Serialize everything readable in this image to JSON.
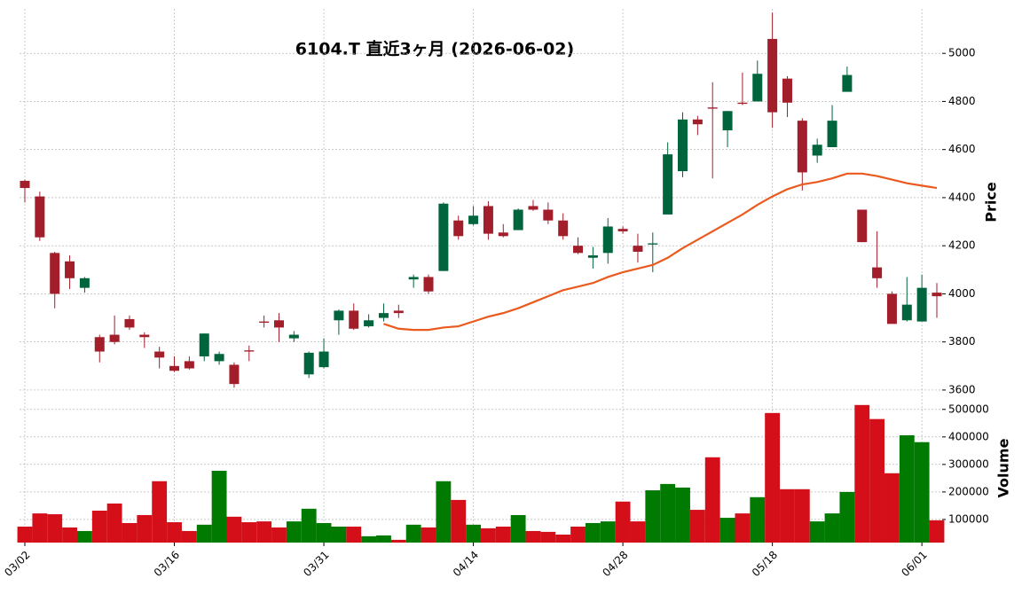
{
  "chart_data": {
    "type": "candlestick",
    "title": "6104.T  直近3ヶ月  (2026-06-02)",
    "categories": [
      "03/02",
      null,
      null,
      null,
      null,
      null,
      null,
      null,
      null,
      null,
      "03/16",
      null,
      null,
      null,
      null,
      null,
      null,
      null,
      null,
      null,
      "03/31",
      null,
      null,
      null,
      null,
      null,
      null,
      null,
      null,
      null,
      "04/14",
      null,
      null,
      null,
      null,
      null,
      null,
      null,
      null,
      null,
      "04/28",
      null,
      null,
      null,
      null,
      null,
      null,
      null,
      null,
      null,
      "05/18",
      null,
      null,
      null,
      null,
      null,
      null,
      null,
      null,
      null,
      "06/01",
      null
    ],
    "open": [
      4470,
      4405,
      4170,
      4135,
      4025,
      3820,
      3830,
      3895,
      3830,
      3760,
      3700,
      3720,
      3740,
      3720,
      3705,
      3765,
      3885,
      3890,
      3815,
      3665,
      3695,
      3890,
      3930,
      3865,
      3900,
      3930,
      4060,
      4070,
      4095,
      4305,
      4290,
      4365,
      4255,
      4265,
      4365,
      4350,
      4305,
      4200,
      4150,
      4170,
      4270,
      4200,
      4205,
      4330,
      4510,
      4725,
      4775,
      4680,
      4795,
      4800,
      5060,
      4895,
      4720,
      4575,
      4610,
      4840,
      4350,
      4110,
      4000,
      3890,
      3885,
      4005
    ],
    "high": [
      4475,
      4425,
      4175,
      4160,
      4070,
      3830,
      3910,
      3910,
      3840,
      3780,
      3740,
      3740,
      3835,
      3760,
      3715,
      3785,
      3910,
      3920,
      3845,
      3760,
      3815,
      3935,
      3960,
      3915,
      3960,
      3955,
      4080,
      4080,
      4380,
      4325,
      4365,
      4385,
      4290,
      4355,
      4390,
      4380,
      4335,
      4235,
      4195,
      4315,
      4280,
      4250,
      4255,
      4630,
      4755,
      4740,
      4880,
      4760,
      4920,
      4970,
      5170,
      4905,
      4730,
      4645,
      4785,
      4945,
      4350,
      4260,
      4010,
      4070,
      4080,
      4045
    ],
    "low": [
      4380,
      4220,
      3940,
      4020,
      4005,
      3715,
      3790,
      3850,
      3775,
      3690,
      3675,
      3685,
      3720,
      3705,
      3610,
      3720,
      3860,
      3800,
      3800,
      3650,
      3690,
      3830,
      3850,
      3860,
      3885,
      3900,
      4025,
      4000,
      4095,
      4225,
      4285,
      4225,
      4235,
      4265,
      4345,
      4290,
      4225,
      4165,
      4105,
      4125,
      4250,
      4130,
      4090,
      4330,
      4485,
      4660,
      4480,
      4610,
      4785,
      4800,
      4690,
      4735,
      4430,
      4545,
      4610,
      4840,
      4215,
      4025,
      3875,
      3885,
      3885,
      3900
    ],
    "close": [
      4440,
      4235,
      4000,
      4065,
      4065,
      3760,
      3800,
      3860,
      3820,
      3735,
      3680,
      3690,
      3835,
      3750,
      3625,
      3760,
      3880,
      3860,
      3830,
      3755,
      3760,
      3930,
      3855,
      3890,
      3920,
      3920,
      4070,
      4010,
      4375,
      4240,
      4325,
      4250,
      4240,
      4350,
      4350,
      4305,
      4240,
      4170,
      4160,
      4280,
      4260,
      4175,
      4210,
      4580,
      4725,
      4705,
      4770,
      4760,
      4790,
      4915,
      4755,
      4795,
      4505,
      4620,
      4720,
      4910,
      4215,
      4065,
      3875,
      3955,
      4025,
      3990
    ],
    "up_color": "#00643c",
    "down_color": "#a21e2a",
    "moving_average": {
      "color": "#ea5a1e",
      "values": [
        null,
        null,
        null,
        null,
        null,
        null,
        null,
        null,
        null,
        null,
        null,
        null,
        null,
        null,
        null,
        null,
        null,
        null,
        null,
        null,
        null,
        null,
        null,
        null,
        3875,
        3855,
        3850,
        3850,
        3860,
        3865,
        3885,
        3905,
        3920,
        3940,
        3965,
        3990,
        4015,
        4030,
        4045,
        4070,
        4090,
        4105,
        4120,
        4150,
        4190,
        4225,
        4260,
        4295,
        4330,
        4370,
        4405,
        4435,
        4455,
        4465,
        4480,
        4500,
        4500,
        4490,
        4475,
        4460,
        4450,
        4440
      ]
    },
    "y_label": "Price",
    "ylim": [
      3585,
      5185
    ],
    "yticks": [
      3600,
      3800,
      4000,
      4200,
      4400,
      4600,
      4800,
      5000
    ],
    "grid": true,
    "volume": {
      "label": "Volume",
      "up_color": "#007a00",
      "down_color": "#d40f1a",
      "ylim": [
        16000,
        538000
      ],
      "yticks": [
        100000,
        200000,
        300000,
        400000,
        500000
      ],
      "values": [
        74000,
        122000,
        119000,
        71000,
        58000,
        132000,
        158000,
        87000,
        116000,
        239000,
        90000,
        58000,
        81000,
        277000,
        110000,
        90000,
        93000,
        71000,
        93000,
        139000,
        87000,
        74000,
        74000,
        39000,
        42000,
        26000,
        81000,
        71000,
        239000,
        171000,
        81000,
        68000,
        74000,
        116000,
        58000,
        55000,
        45000,
        74000,
        87000,
        93000,
        165000,
        93000,
        206000,
        229000,
        216000,
        135000,
        326000,
        106000,
        122000,
        181000,
        487000,
        210000,
        210000,
        93000,
        122000,
        200000,
        516000,
        465000,
        268000,
        406000,
        381000,
        97000
      ]
    }
  }
}
